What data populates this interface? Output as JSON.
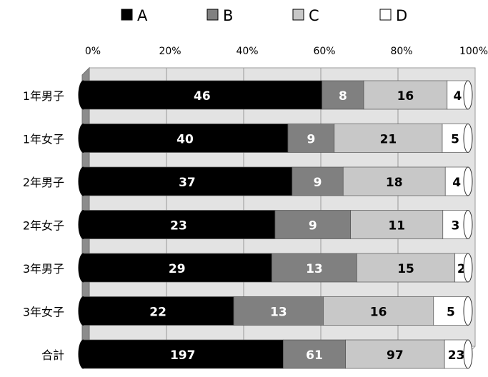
{
  "chart_data": {
    "type": "bar",
    "orientation": "horizontal",
    "stacked": "percent",
    "style": "3d-cylinder",
    "categories": [
      "1年男子",
      "1年女子",
      "2年男子",
      "2年女子",
      "3年男子",
      "3年女子",
      "合計"
    ],
    "series": [
      {
        "name": "A",
        "color": "#000000",
        "label_color": "#ffffff",
        "values": [
          46,
          40,
          37,
          23,
          29,
          22,
          197
        ]
      },
      {
        "name": "B",
        "color": "#808080",
        "label_color": "#ffffff",
        "values": [
          8,
          9,
          9,
          9,
          13,
          13,
          61
        ]
      },
      {
        "name": "C",
        "color": "#c8c8c8",
        "label_color": "#000000",
        "values": [
          16,
          21,
          18,
          11,
          15,
          16,
          97
        ]
      },
      {
        "name": "D",
        "color": "#ffffff",
        "label_color": "#000000",
        "values": [
          4,
          5,
          4,
          3,
          2,
          5,
          23
        ]
      }
    ],
    "xticks": [
      "0%",
      "20%",
      "40%",
      "60%",
      "80%",
      "100%"
    ],
    "xlim": [
      0,
      100
    ],
    "grid": true,
    "legend": "top"
  }
}
